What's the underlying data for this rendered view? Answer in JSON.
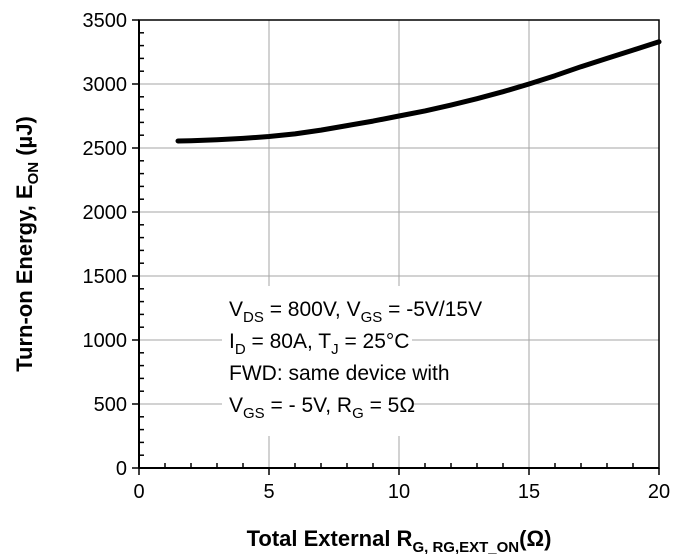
{
  "chart_data": {
    "type": "line",
    "xlim": [
      0,
      20
    ],
    "ylim": [
      0,
      3500
    ],
    "x_ticks": [
      "0",
      "5",
      "10",
      "15",
      "20"
    ],
    "y_ticks": [
      "0",
      "500",
      "1000",
      "1500",
      "2000",
      "2500",
      "3000",
      "3500"
    ],
    "grid": true,
    "xlabel": {
      "main": "Total External R",
      "sub": "G, RG,EXT_ON",
      "unit": "(Ω)"
    },
    "ylabel": {
      "main": "Turn-on Energy, E",
      "sub": "ON",
      "unit": " (µJ)"
    },
    "series": [
      {
        "x": [
          1.5,
          2,
          3,
          4,
          5,
          6,
          7,
          8,
          9,
          10,
          11,
          12,
          13,
          14,
          15,
          16,
          17,
          18,
          19,
          20
        ],
        "y": [
          2555,
          2557,
          2564,
          2575,
          2590,
          2610,
          2640,
          2675,
          2710,
          2750,
          2790,
          2835,
          2885,
          2940,
          3000,
          3065,
          3135,
          3200,
          3265,
          3330
        ]
      }
    ],
    "annotation": {
      "line1": {
        "a": "V",
        "a_sub": "DS",
        "b": " = 800V, V",
        "b_sub": "GS",
        "c": " = -5V/15V"
      },
      "line2": {
        "a": "I",
        "a_sub": "D",
        "b": " = 80A, T",
        "b_sub": "J",
        "c": " = 25°C"
      },
      "line3": "FWD: same device with",
      "line4": {
        "a": "V",
        "a_sub": "GS",
        "b": " = - 5V, R",
        "b_sub": "G",
        "c": " = 5Ω"
      }
    }
  }
}
